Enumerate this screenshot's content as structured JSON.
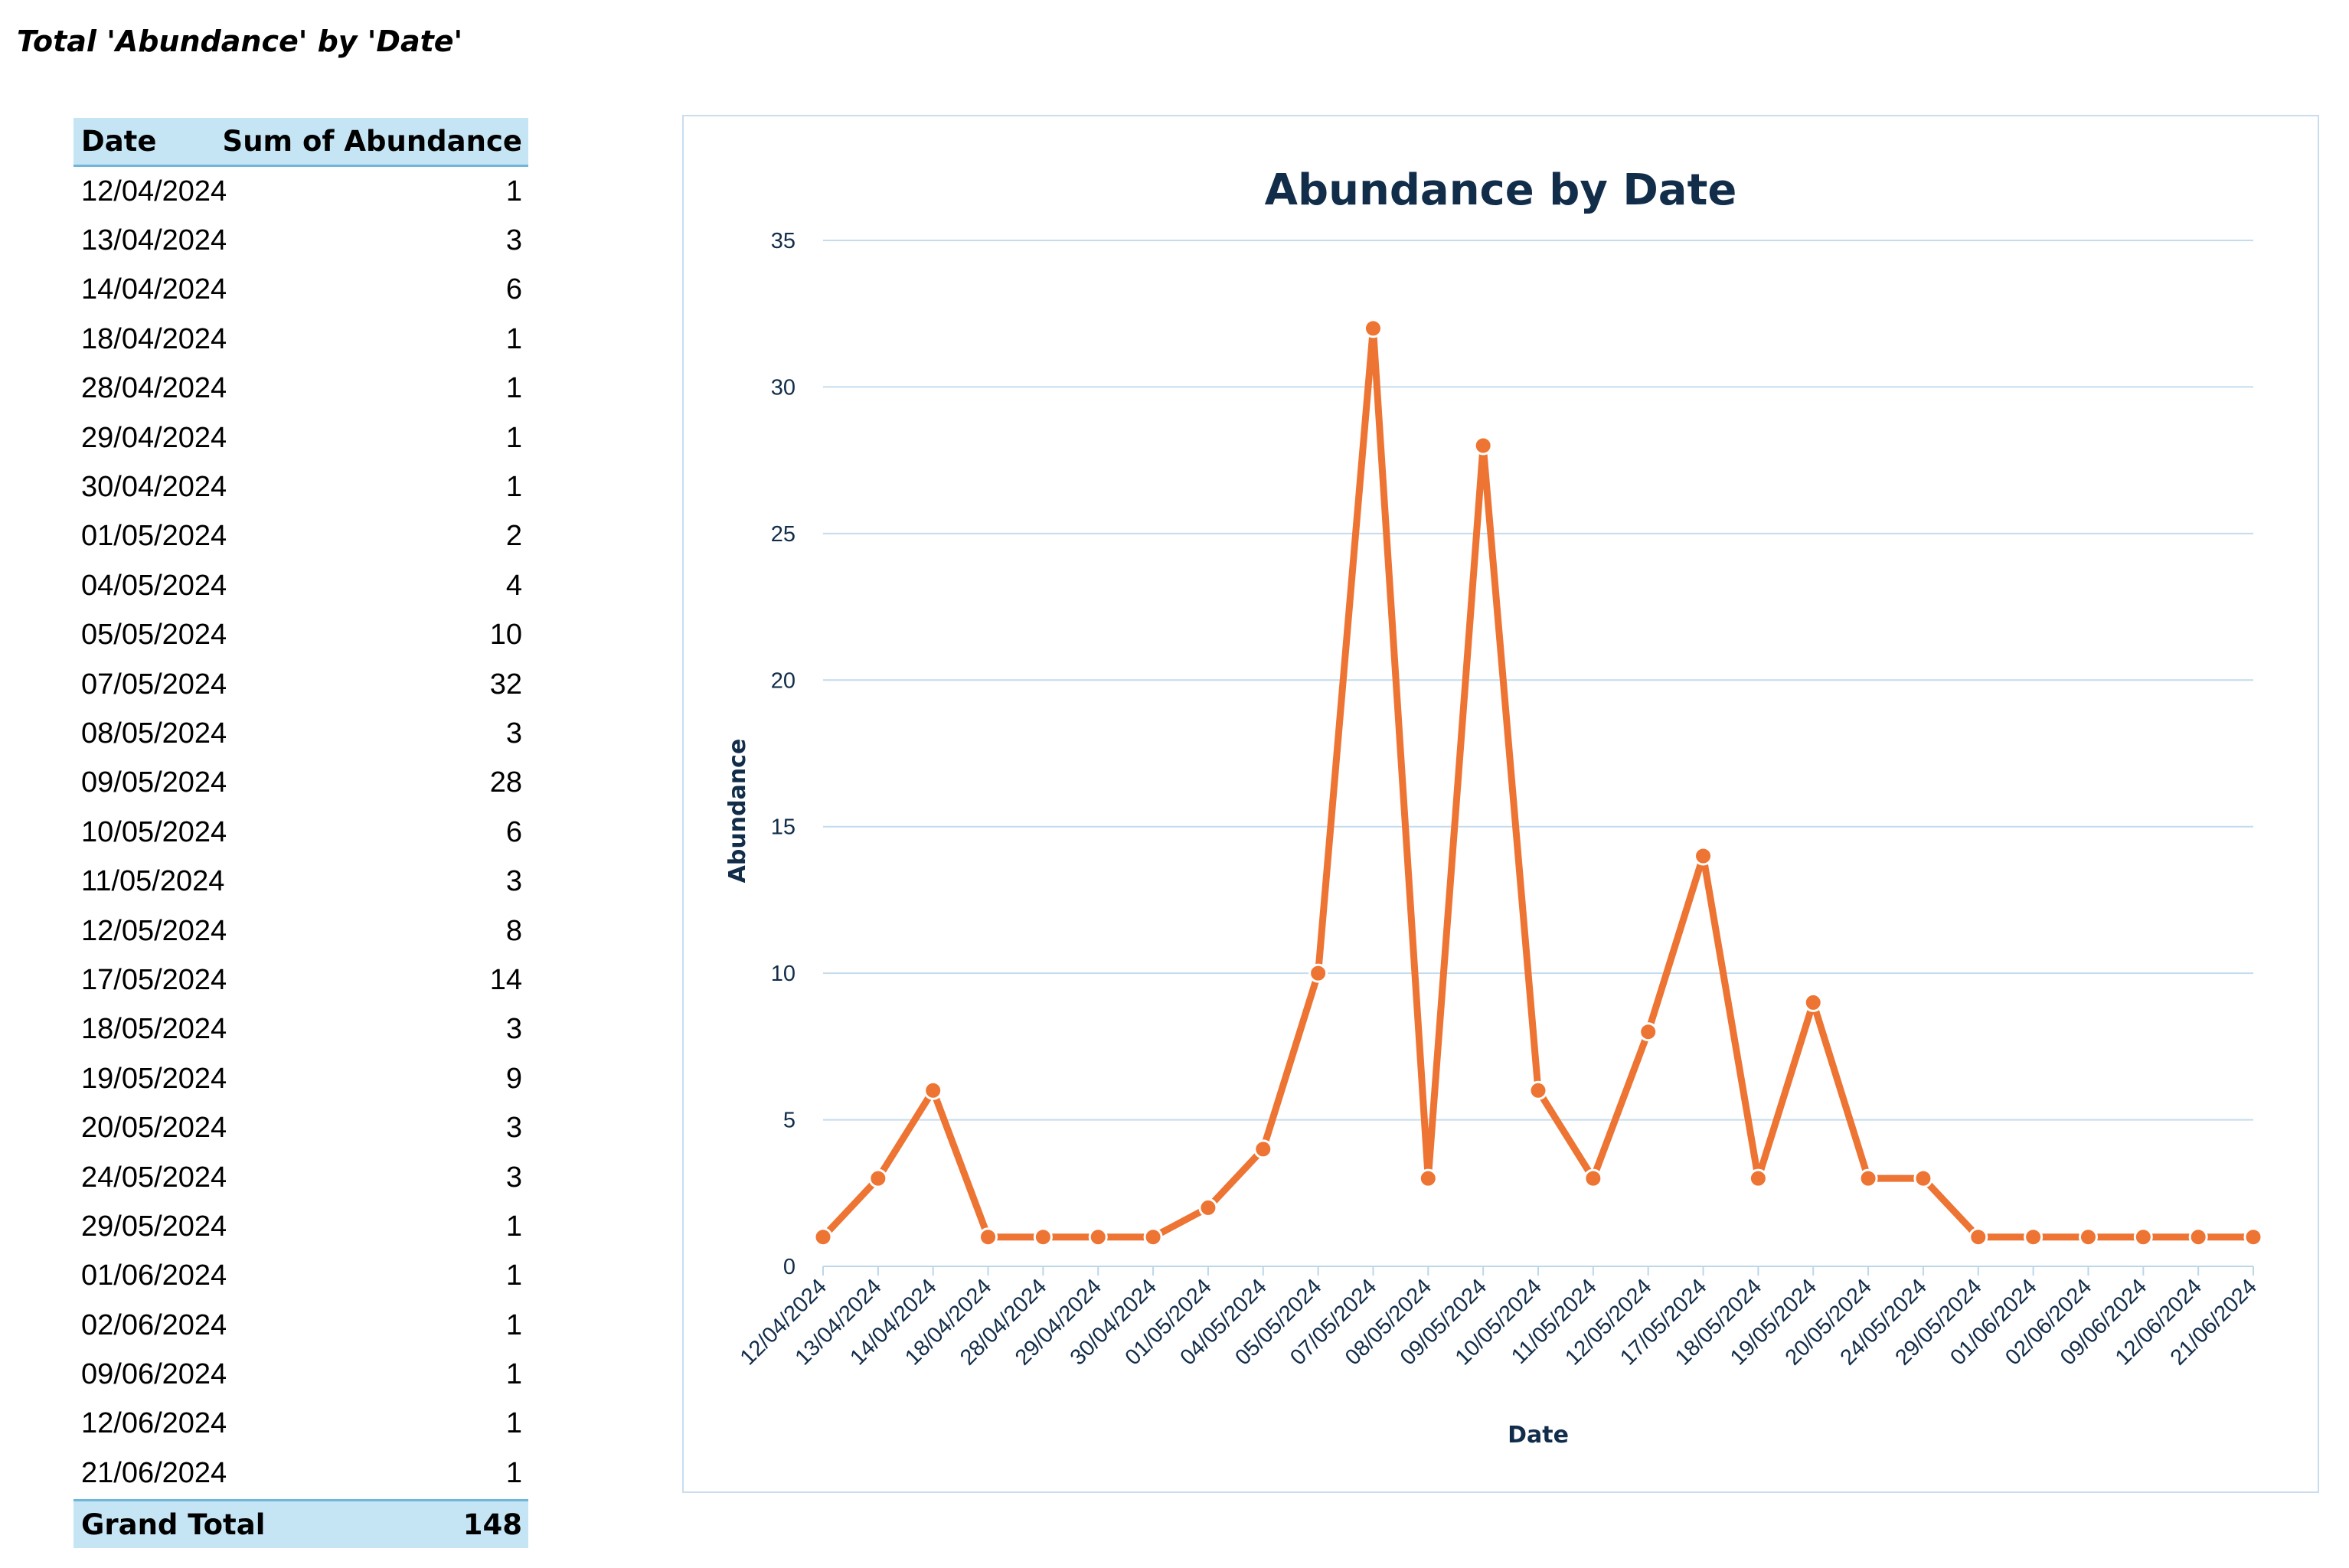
{
  "page_title": "Total 'Abundance' by 'Date'",
  "table": {
    "headers": [
      "Date",
      "Sum of Abundance"
    ],
    "rows": [
      {
        "date": "12/04/2024",
        "value": "1"
      },
      {
        "date": "13/04/2024",
        "value": "3"
      },
      {
        "date": "14/04/2024",
        "value": "6"
      },
      {
        "date": "18/04/2024",
        "value": "1"
      },
      {
        "date": "28/04/2024",
        "value": "1"
      },
      {
        "date": "29/04/2024",
        "value": "1"
      },
      {
        "date": "30/04/2024",
        "value": "1"
      },
      {
        "date": "01/05/2024",
        "value": "2"
      },
      {
        "date": "04/05/2024",
        "value": "4"
      },
      {
        "date": "05/05/2024",
        "value": "10"
      },
      {
        "date": "07/05/2024",
        "value": "32"
      },
      {
        "date": "08/05/2024",
        "value": "3"
      },
      {
        "date": "09/05/2024",
        "value": "28"
      },
      {
        "date": "10/05/2024",
        "value": "6"
      },
      {
        "date": "11/05/2024",
        "value": "3"
      },
      {
        "date": "12/05/2024",
        "value": "8"
      },
      {
        "date": "17/05/2024",
        "value": "14"
      },
      {
        "date": "18/05/2024",
        "value": "3"
      },
      {
        "date": "19/05/2024",
        "value": "9"
      },
      {
        "date": "20/05/2024",
        "value": "3"
      },
      {
        "date": "24/05/2024",
        "value": "3"
      },
      {
        "date": "29/05/2024",
        "value": "1"
      },
      {
        "date": "01/06/2024",
        "value": "1"
      },
      {
        "date": "02/06/2024",
        "value": "1"
      },
      {
        "date": "09/06/2024",
        "value": "1"
      },
      {
        "date": "12/06/2024",
        "value": "1"
      },
      {
        "date": "21/06/2024",
        "value": "1"
      }
    ],
    "total_label": "Grand Total",
    "total_value": "148"
  },
  "chart_data": {
    "type": "line",
    "title": "Abundance by Date",
    "xlabel": "Date",
    "ylabel": "Abundance",
    "categories": [
      "12/04/2024",
      "13/04/2024",
      "14/04/2024",
      "18/04/2024",
      "28/04/2024",
      "29/04/2024",
      "30/04/2024",
      "01/05/2024",
      "04/05/2024",
      "05/05/2024",
      "07/05/2024",
      "08/05/2024",
      "09/05/2024",
      "10/05/2024",
      "11/05/2024",
      "12/05/2024",
      "17/05/2024",
      "18/05/2024",
      "19/05/2024",
      "20/05/2024",
      "24/05/2024",
      "29/05/2024",
      "01/06/2024",
      "02/06/2024",
      "09/06/2024",
      "12/06/2024",
      "21/06/2024"
    ],
    "values": [
      1,
      3,
      6,
      1,
      1,
      1,
      1,
      2,
      4,
      10,
      32,
      3,
      28,
      6,
      3,
      8,
      14,
      3,
      9,
      3,
      3,
      1,
      1,
      1,
      1,
      1,
      1
    ],
    "ylim": [
      0,
      35
    ],
    "yticks": [
      0,
      5,
      10,
      15,
      20,
      25,
      30,
      35
    ],
    "grid": true,
    "legend": "none",
    "line_color": "#ed7433",
    "grid_color": "#c4dcee",
    "text_color": "#122d4a"
  }
}
